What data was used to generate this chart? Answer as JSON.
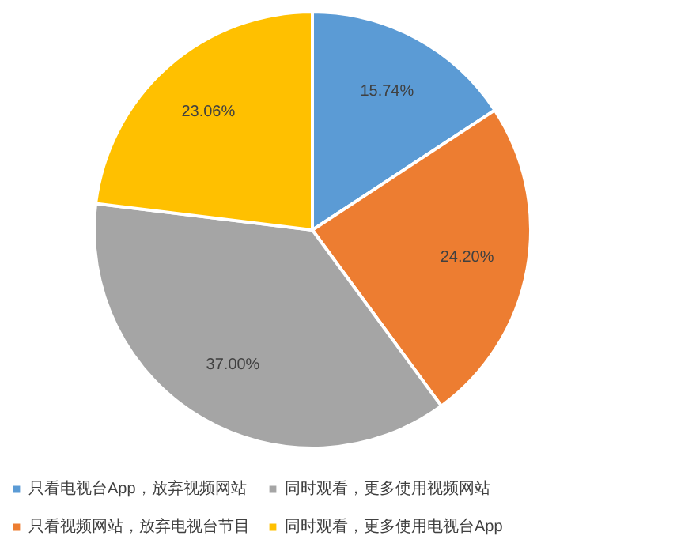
{
  "chart_data": {
    "type": "pie",
    "categories": [
      "只看电视台App，放弃视频网站",
      "只看视频网站，放弃电视台节目",
      "同时观看，更多使用视频网站",
      "同时观看，更多使用电视台App"
    ],
    "values": [
      15.74,
      24.2,
      37.0,
      23.06
    ],
    "colors": [
      "#5b9bd5",
      "#ed7d31",
      "#a5a5a5",
      "#ffc000"
    ],
    "value_labels": [
      "15.74%",
      "24.20%",
      "37.00%",
      "23.06%"
    ],
    "legend": "bottom"
  }
}
